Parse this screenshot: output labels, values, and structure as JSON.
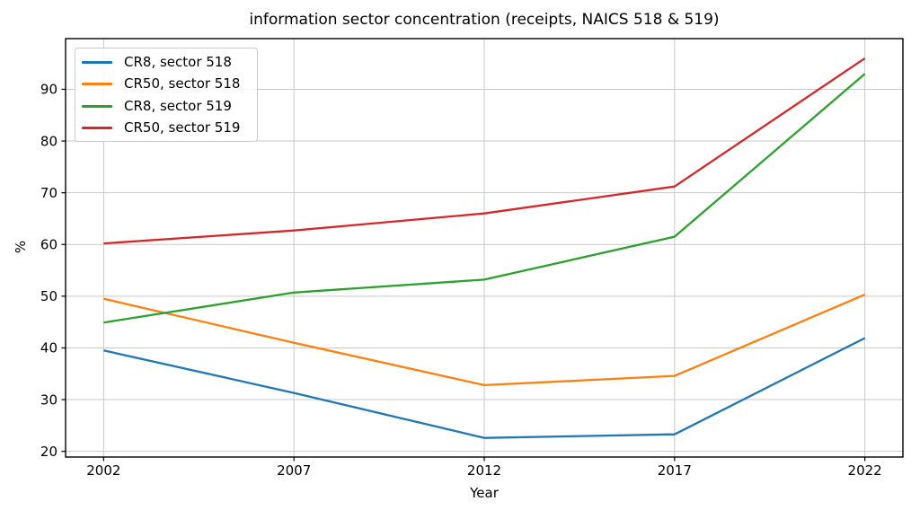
{
  "chart_data": {
    "type": "line",
    "title": "information sector concentration (receipts, NAICS 518 & 519)",
    "xlabel": "Year",
    "ylabel": "%",
    "x": [
      2002,
      2007,
      2012,
      2017,
      2022
    ],
    "series": [
      {
        "name": "CR8, sector 518",
        "color": "#1f77b4",
        "values": [
          39.5,
          31.3,
          22.6,
          23.3,
          41.9
        ]
      },
      {
        "name": "CR50, sector 518",
        "color": "#ff7f0e",
        "values": [
          49.5,
          41.0,
          32.8,
          34.6,
          50.3
        ]
      },
      {
        "name": "CR8, sector 519",
        "color": "#2ca02c",
        "values": [
          44.9,
          50.7,
          53.2,
          61.5,
          93.0
        ]
      },
      {
        "name": "CR50, sector 519",
        "color": "#d62728",
        "values": [
          60.2,
          62.7,
          66.0,
          71.2,
          96.0
        ]
      }
    ],
    "xticks": [
      2002,
      2007,
      2012,
      2017,
      2022
    ],
    "yticks": [
      20,
      30,
      40,
      50,
      60,
      70,
      80,
      90
    ],
    "xlim": [
      2001,
      2023
    ],
    "ylim": [
      18.9,
      99.8
    ],
    "grid": true,
    "grid_color": "#c9c9c9",
    "axes_color": "#000000",
    "legend_position": "upper left"
  }
}
